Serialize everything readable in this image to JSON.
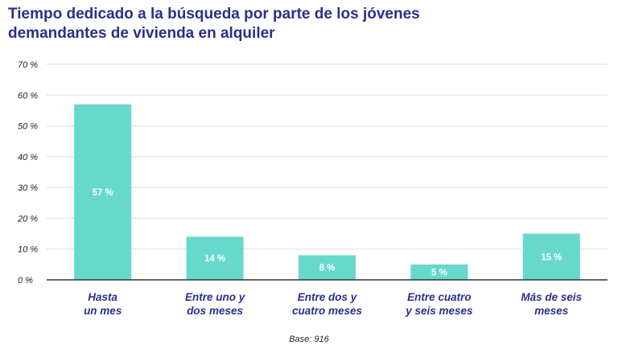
{
  "title_lines": [
    "Tiempo dedicado a la búsqueda por parte de los jóvenes",
    "demandantes de vivienda en alquiler"
  ],
  "base_note": "Base: 916",
  "colors": {
    "bar": "#66d9cc",
    "title": "#2b2f8c",
    "grid": "#dddddd",
    "axis": "#333333"
  },
  "chart_data": {
    "type": "bar",
    "title": "Tiempo dedicado a la búsqueda por parte de los jóvenes demandantes de vivienda en alquiler",
    "categories": [
      [
        "Hasta",
        "un mes"
      ],
      [
        "Entre uno y",
        "dos meses"
      ],
      [
        "Entre dos y",
        "cuatro meses"
      ],
      [
        "Entre cuatro",
        "y seis meses"
      ],
      [
        "Más de seis",
        "meses"
      ]
    ],
    "values": [
      57,
      14,
      8,
      5,
      15
    ],
    "value_labels": [
      "57 %",
      "14 %",
      "8 %",
      "5 %",
      "15 %"
    ],
    "ylim": [
      0,
      70
    ],
    "yticks": [
      "0 %",
      "10 %",
      "20 %",
      "30 %",
      "40 %",
      "50 %",
      "60 %",
      "70 %"
    ],
    "grid": true,
    "xlabel": "",
    "ylabel": ""
  }
}
